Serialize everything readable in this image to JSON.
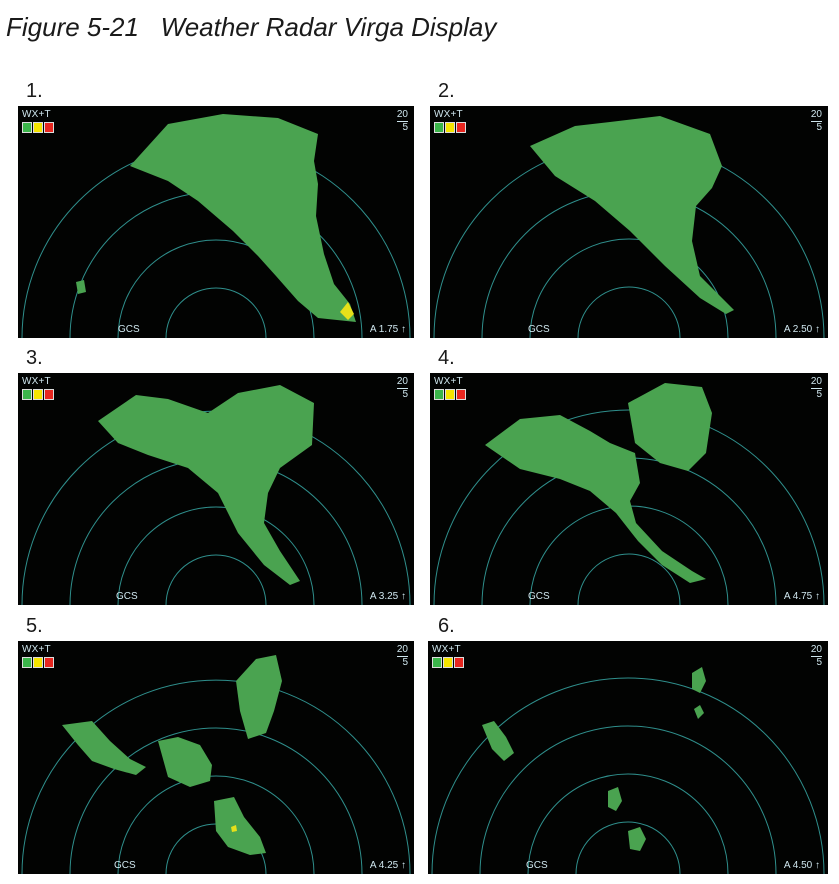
{
  "figure": {
    "caption": "Figure 5-21   Weather Radar Virga Display"
  },
  "legend_colors": [
    "#3bb54a",
    "#f5e400",
    "#e8261f"
  ],
  "panels": [
    {
      "number": "1.",
      "mode": "WX+T",
      "range_outer": "20",
      "range_inner": "5",
      "mode_bottom": "GCS",
      "tilt": "A 1.75 ↑"
    },
    {
      "number": "2.",
      "mode": "WX+T",
      "range_outer": "20",
      "range_inner": "5",
      "mode_bottom": "GCS",
      "tilt": "A 2.50 ↑"
    },
    {
      "number": "3.",
      "mode": "WX+T",
      "range_outer": "20",
      "range_inner": "5",
      "mode_bottom": "GCS",
      "tilt": "A 3.25 ↑"
    },
    {
      "number": "4.",
      "mode": "WX+T",
      "range_outer": "20",
      "range_inner": "5",
      "mode_bottom": "GCS",
      "tilt": "A 4.75 ↑"
    },
    {
      "number": "5.",
      "mode": "WX+T",
      "range_outer": "20",
      "range_inner": "5",
      "mode_bottom": "GCS",
      "tilt": "A 4.25 ↑"
    },
    {
      "number": "6.",
      "mode": "WX+T",
      "range_outer": "20",
      "range_inner": "5",
      "mode_bottom": "GCS",
      "tilt": "A 4.50 ↑"
    }
  ]
}
